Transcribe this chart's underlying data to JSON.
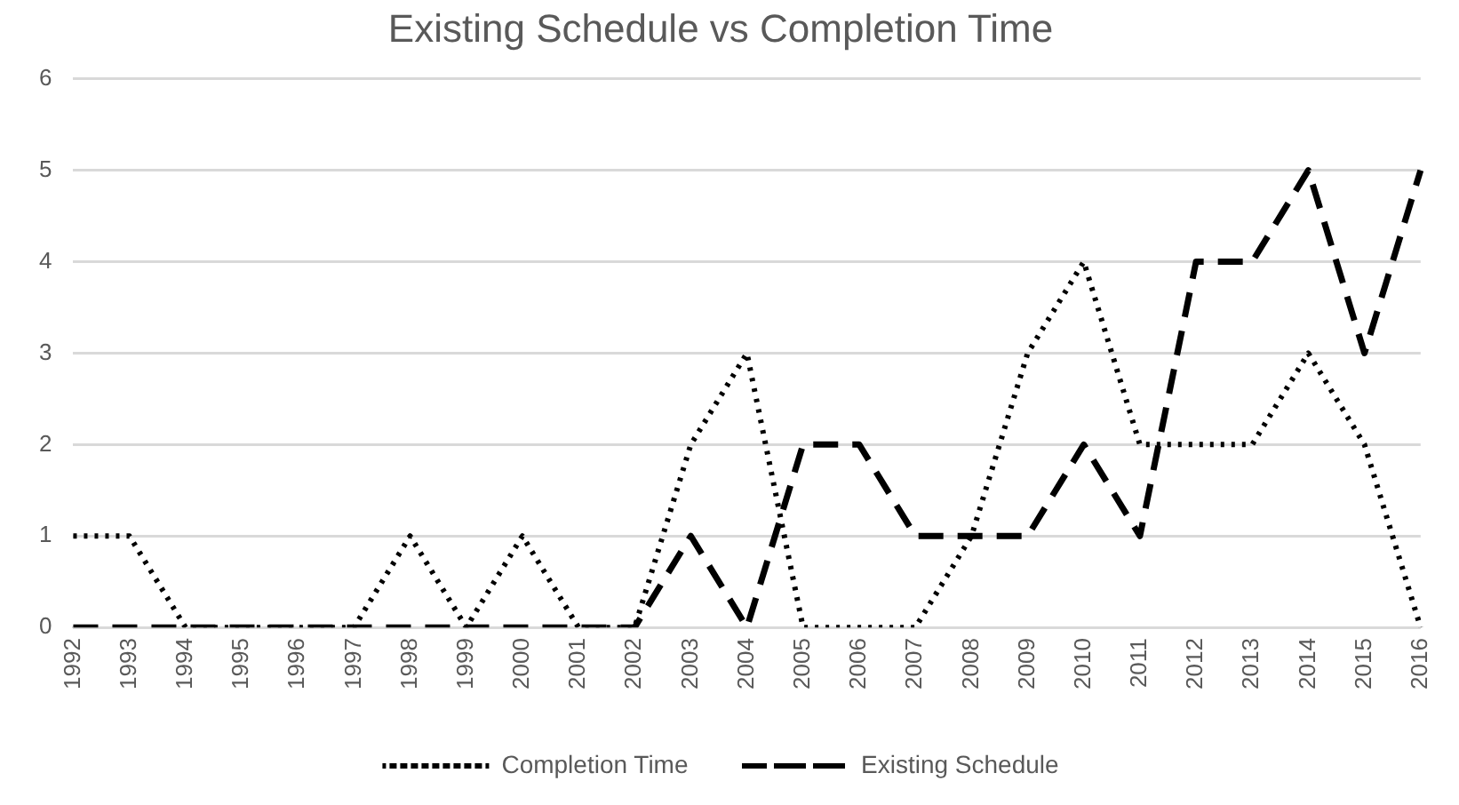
{
  "chart_data": {
    "type": "line",
    "title": "Existing Schedule vs Completion Time",
    "categories": [
      "1992",
      "1993",
      "1994",
      "1995",
      "1996",
      "1997",
      "1998",
      "1999",
      "2000",
      "2001",
      "2002",
      "2003",
      "2004",
      "2005",
      "2006",
      "2007",
      "2008",
      "2009",
      "2010",
      "2011",
      "2012",
      "2013",
      "2014",
      "2015",
      "2016"
    ],
    "series": [
      {
        "name": "Completion Time",
        "color": "#000000",
        "line_style": "dotted",
        "values": [
          1,
          1,
          0,
          0,
          0,
          0,
          1,
          0,
          1,
          0,
          0,
          2,
          3,
          0,
          0,
          0,
          1,
          3,
          4,
          2,
          2,
          2,
          3,
          2,
          0
        ]
      },
      {
        "name": "Existing Schedule",
        "color": "#000000",
        "line_style": "dashed",
        "values": [
          0,
          0,
          0,
          0,
          0,
          0,
          0,
          0,
          0,
          0,
          0,
          1,
          0,
          2,
          2,
          1,
          1,
          1,
          2,
          1,
          4,
          4,
          5,
          3,
          5
        ]
      }
    ],
    "ylim": [
      0,
      6
    ],
    "yticks": [
      0,
      1,
      2,
      3,
      4,
      5,
      6
    ],
    "grid": "y",
    "legend": "bottom",
    "marker": "none"
  }
}
